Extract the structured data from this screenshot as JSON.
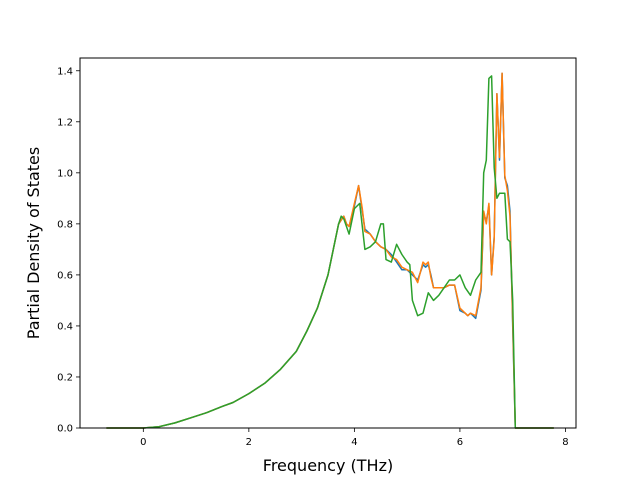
{
  "chart_data": {
    "type": "line",
    "title": "",
    "xlabel": "Frequency (THz)",
    "ylabel": "Partial Density of States",
    "xlim": [
      -1.2,
      8.2
    ],
    "ylim": [
      0,
      1.45
    ],
    "xticks": [
      0,
      2,
      4,
      6,
      8
    ],
    "yticks": [
      0.0,
      0.2,
      0.4,
      0.6,
      0.8,
      1.0,
      1.2,
      1.4
    ],
    "xtick_labels": [
      "0",
      "2",
      "4",
      "6",
      "8"
    ],
    "ytick_labels": [
      "0.0",
      "0.2",
      "0.4",
      "0.6",
      "0.8",
      "1.0",
      "1.2",
      "1.4"
    ],
    "grid": false,
    "legend": "none",
    "series": [
      {
        "color": "#1f77b4",
        "x": [
          -0.7,
          -0.1,
          0.0,
          0.3,
          0.6,
          0.9,
          1.2,
          1.5,
          1.7,
          2.0,
          2.3,
          2.6,
          2.9,
          3.1,
          3.3,
          3.5,
          3.6,
          3.7,
          3.8,
          3.85,
          3.9,
          4.0,
          4.08,
          4.15,
          4.2,
          4.3,
          4.4,
          4.5,
          4.6,
          4.7,
          4.8,
          4.9,
          5.0,
          5.1,
          5.2,
          5.3,
          5.35,
          5.4,
          5.45,
          5.5,
          5.7,
          5.8,
          5.9,
          6.0,
          6.1,
          6.15,
          6.2,
          6.3,
          6.4,
          6.45,
          6.5,
          6.55,
          6.6,
          6.65,
          6.7,
          6.75,
          6.8,
          6.85,
          6.9,
          6.95,
          7.0,
          7.05,
          7.1,
          7.2,
          7.78
        ],
        "y": [
          0.0,
          0.0,
          0.0,
          0.005,
          0.02,
          0.04,
          0.06,
          0.085,
          0.1,
          0.135,
          0.175,
          0.23,
          0.3,
          0.38,
          0.47,
          0.6,
          0.7,
          0.8,
          0.83,
          0.8,
          0.79,
          0.87,
          0.95,
          0.85,
          0.78,
          0.76,
          0.73,
          0.71,
          0.7,
          0.68,
          0.65,
          0.62,
          0.62,
          0.6,
          0.58,
          0.64,
          0.63,
          0.64,
          0.6,
          0.55,
          0.55,
          0.56,
          0.56,
          0.46,
          0.45,
          0.44,
          0.45,
          0.43,
          0.54,
          0.84,
          0.81,
          0.87,
          0.6,
          0.75,
          1.31,
          1.05,
          1.39,
          0.98,
          0.95,
          0.85,
          0.4,
          0.0,
          0.0,
          0.0,
          0.0
        ]
      },
      {
        "color": "#ff7f0e",
        "x": [
          -0.7,
          -0.1,
          0.0,
          0.3,
          0.6,
          0.9,
          1.2,
          1.5,
          1.7,
          2.0,
          2.3,
          2.6,
          2.9,
          3.1,
          3.3,
          3.5,
          3.6,
          3.7,
          3.8,
          3.85,
          3.9,
          4.0,
          4.08,
          4.15,
          4.2,
          4.3,
          4.4,
          4.5,
          4.6,
          4.7,
          4.8,
          4.9,
          5.0,
          5.1,
          5.2,
          5.3,
          5.35,
          5.4,
          5.45,
          5.5,
          5.7,
          5.8,
          5.9,
          6.0,
          6.1,
          6.15,
          6.2,
          6.3,
          6.4,
          6.45,
          6.5,
          6.55,
          6.6,
          6.65,
          6.7,
          6.75,
          6.8,
          6.85,
          6.9,
          6.95,
          7.0,
          7.05,
          7.1,
          7.2,
          7.78
        ],
        "y": [
          0.0,
          0.0,
          0.0,
          0.005,
          0.02,
          0.04,
          0.06,
          0.085,
          0.1,
          0.135,
          0.175,
          0.23,
          0.3,
          0.38,
          0.47,
          0.6,
          0.7,
          0.8,
          0.83,
          0.8,
          0.79,
          0.88,
          0.95,
          0.86,
          0.77,
          0.76,
          0.73,
          0.71,
          0.7,
          0.67,
          0.66,
          0.63,
          0.62,
          0.61,
          0.57,
          0.65,
          0.64,
          0.65,
          0.59,
          0.55,
          0.55,
          0.56,
          0.56,
          0.47,
          0.45,
          0.44,
          0.45,
          0.44,
          0.55,
          0.85,
          0.8,
          0.88,
          0.6,
          0.74,
          1.31,
          1.06,
          1.39,
          0.99,
          0.93,
          0.83,
          0.42,
          0.0,
          0.0,
          0.0,
          0.0
        ]
      },
      {
        "color": "#2ca02c",
        "x": [
          -0.7,
          -0.1,
          0.0,
          0.3,
          0.6,
          0.9,
          1.2,
          1.5,
          1.7,
          2.0,
          2.3,
          2.6,
          2.9,
          3.1,
          3.3,
          3.5,
          3.6,
          3.7,
          3.75,
          3.8,
          3.9,
          4.0,
          4.1,
          4.2,
          4.3,
          4.4,
          4.5,
          4.55,
          4.6,
          4.7,
          4.8,
          4.9,
          5.0,
          5.05,
          5.1,
          5.2,
          5.3,
          5.4,
          5.5,
          5.6,
          5.7,
          5.8,
          5.9,
          6.0,
          6.1,
          6.2,
          6.3,
          6.4,
          6.45,
          6.5,
          6.55,
          6.6,
          6.65,
          6.7,
          6.75,
          6.8,
          6.85,
          6.9,
          6.95,
          7.0,
          7.05,
          7.1,
          7.2,
          7.78
        ],
        "y": [
          0.0,
          0.0,
          0.0,
          0.005,
          0.02,
          0.04,
          0.06,
          0.085,
          0.1,
          0.135,
          0.175,
          0.23,
          0.3,
          0.38,
          0.47,
          0.6,
          0.7,
          0.8,
          0.83,
          0.82,
          0.76,
          0.86,
          0.88,
          0.7,
          0.71,
          0.73,
          0.8,
          0.8,
          0.66,
          0.65,
          0.72,
          0.68,
          0.65,
          0.64,
          0.5,
          0.44,
          0.45,
          0.53,
          0.5,
          0.52,
          0.55,
          0.58,
          0.58,
          0.6,
          0.55,
          0.52,
          0.58,
          0.61,
          1.0,
          1.05,
          1.37,
          1.38,
          1.02,
          0.9,
          0.92,
          0.92,
          0.92,
          0.74,
          0.73,
          0.5,
          0.0,
          0.0,
          0.0,
          0.0
        ]
      }
    ]
  }
}
